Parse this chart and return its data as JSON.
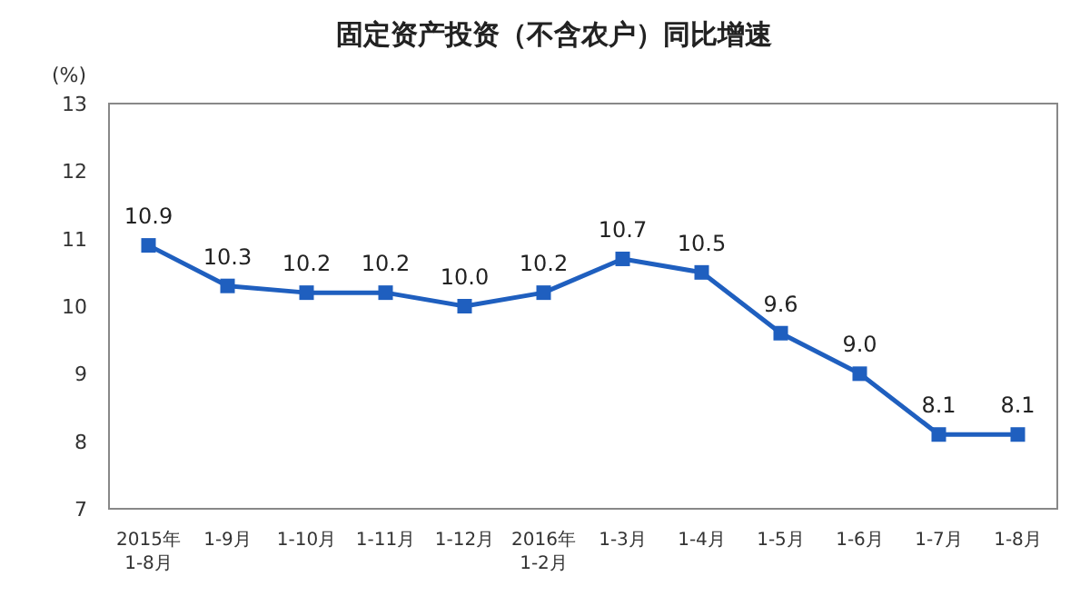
{
  "chart_data": {
    "type": "line",
    "title": "固定资产投资（不含农户）同比增速",
    "ylabel": "(%)",
    "categories": [
      "2015年\n1-8月",
      "1-9月",
      "1-10月",
      "1-11月",
      "1-12月",
      "2016年\n1-2月",
      "1-3月",
      "1-4月",
      "1-5月",
      "1-6月",
      "1-7月",
      "1-8月"
    ],
    "series": [
      {
        "color": "#1f5fbf",
        "values": [
          10.9,
          10.3,
          10.2,
          10.2,
          10.0,
          10.2,
          10.7,
          10.5,
          9.6,
          9.0,
          8.1,
          8.1
        ],
        "value_labels": [
          "10.9",
          "10.3",
          "10.2",
          "10.2",
          "10.0",
          "10.2",
          "10.7",
          "10.5",
          "9.6",
          "9.0",
          "8.1",
          "8.1"
        ]
      }
    ],
    "ylim": [
      7,
      13
    ],
    "yticks": [
      7,
      8,
      9,
      10,
      11,
      12,
      13
    ],
    "marker": "square",
    "line_style": "solid"
  }
}
